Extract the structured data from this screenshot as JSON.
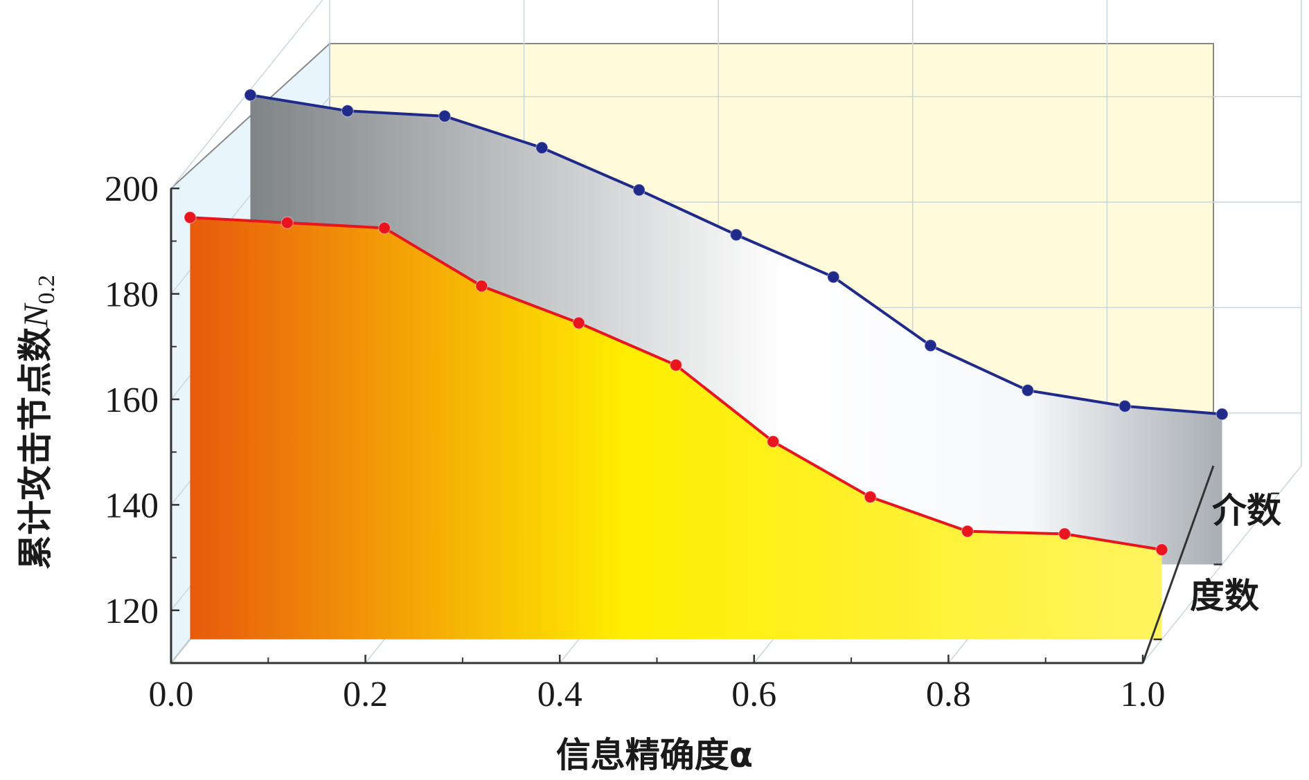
{
  "chart_data": {
    "type": "area",
    "title": "",
    "xlabel": "信息精确度α",
    "ylabel": "累计攻击节点数N0.2",
    "ylabel_main": "累计攻击节点数",
    "ylabel_var": "N",
    "ylabel_sub": "0.2",
    "xlim": [
      0.0,
      1.0
    ],
    "ylim": [
      110,
      200
    ],
    "x_ticks": [
      "0.0",
      "0.2",
      "0.4",
      "0.6",
      "0.8",
      "1.0"
    ],
    "y_ticks": [
      "120",
      "140",
      "160",
      "180",
      "200"
    ],
    "x": [
      0.0,
      0.1,
      0.2,
      0.3,
      0.4,
      0.5,
      0.6,
      0.7,
      0.8,
      0.9,
      1.0
    ],
    "series": [
      {
        "name": "介数",
        "color": "#1f2a8a",
        "fill_from": "#7f8487",
        "fill_mid": "#ffffff",
        "values": [
          199,
          196,
          195,
          189,
          181,
          172.5,
          164.5,
          151.5,
          143,
          140,
          138.5
        ]
      },
      {
        "name": "度数",
        "color": "#e8141e",
        "fill_from": "#e85a0c",
        "fill_mid": "#ffee00",
        "values": [
          190,
          189,
          188,
          177,
          170,
          162,
          147.5,
          137,
          130.5,
          130,
          127
        ]
      }
    ],
    "grid": true,
    "legend": "right"
  }
}
